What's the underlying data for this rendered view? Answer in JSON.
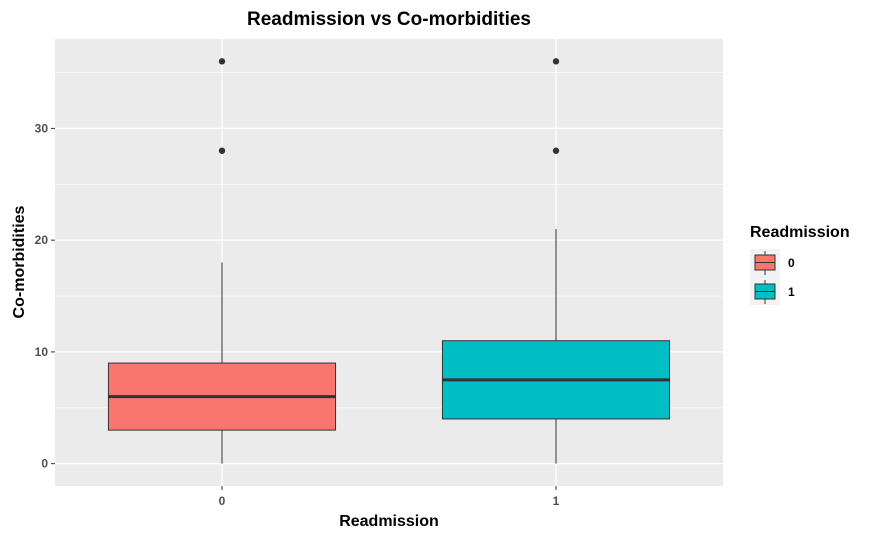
{
  "chart_data": {
    "type": "box",
    "title": "Readmission vs Co-morbidities",
    "xlabel": "Readmission",
    "ylabel": "Co-morbidities",
    "categories": [
      "0",
      "1"
    ],
    "ylim": [
      -2,
      38
    ],
    "yticks": [
      0,
      10,
      20,
      30
    ],
    "grid": true,
    "legend": {
      "title": "Readmission",
      "placement": "right",
      "entries": [
        "0",
        "1"
      ]
    },
    "colors": {
      "0": "#f8766d",
      "1": "#00bfc4",
      "panel": "#ebebeb",
      "grid": "#ffffff",
      "median": "#333333",
      "outlier": "#333333"
    },
    "boxes": [
      {
        "category": "0",
        "whisker_low": 0,
        "q1": 3,
        "median": 6,
        "q3": 9,
        "whisker_high": 18,
        "outliers": [
          28,
          36
        ]
      },
      {
        "category": "1",
        "whisker_low": 0,
        "q1": 4,
        "median": 7.5,
        "q3": 11,
        "whisker_high": 21,
        "outliers": [
          28,
          36
        ]
      }
    ]
  }
}
